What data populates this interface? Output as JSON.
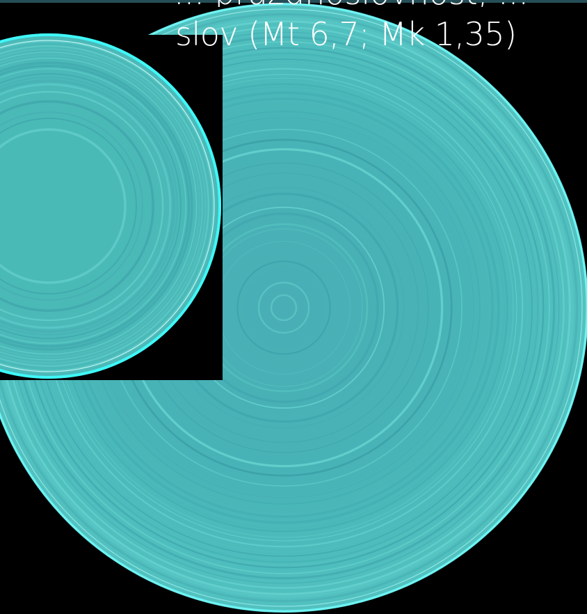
{
  "slide": {
    "caption_line1": "... prázdnoslovnosť, ...",
    "caption_line2": "slov (Mt 6,7; Mk 1,35)"
  },
  "colors": {
    "background": "#000000",
    "disc_fill": "#4ab7b7",
    "ring_light": "#7fe0e0",
    "ring_dark": "#3c9ea3",
    "rim_highlight": "#5ff7f7",
    "top_bar": "#254e57"
  }
}
